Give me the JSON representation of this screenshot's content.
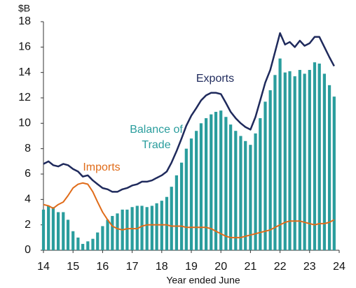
{
  "chart_data": {
    "type": "line_bar",
    "y_unit_label": "$B",
    "xlabel": "Year ended June",
    "x": [
      14,
      14.17,
      14.33,
      14.5,
      14.67,
      14.83,
      15,
      15.17,
      15.33,
      15.5,
      15.67,
      15.83,
      16,
      16.17,
      16.33,
      16.5,
      16.67,
      16.83,
      17,
      17.17,
      17.33,
      17.5,
      17.67,
      17.83,
      18,
      18.17,
      18.33,
      18.5,
      18.67,
      18.83,
      19,
      19.17,
      19.33,
      19.5,
      19.67,
      19.83,
      20,
      20.17,
      20.33,
      20.5,
      20.67,
      20.83,
      21,
      21.17,
      21.33,
      21.5,
      21.67,
      21.83,
      22,
      22.17,
      22.33,
      22.5,
      22.67,
      22.83,
      23,
      23.17,
      23.33,
      23.5,
      23.67,
      23.83
    ],
    "series": [
      {
        "name": "Balance of Trade",
        "kind": "bar",
        "color": "#2a9d9d",
        "values": [
          3.2,
          3.5,
          3.4,
          3.0,
          3.0,
          2.4,
          1.5,
          1.0,
          0.5,
          0.7,
          0.9,
          1.4,
          1.9,
          2.4,
          2.7,
          2.9,
          3.2,
          3.2,
          3.4,
          3.5,
          3.5,
          3.4,
          3.5,
          3.7,
          3.9,
          4.2,
          5.0,
          5.9,
          6.9,
          8.0,
          8.8,
          9.4,
          10.0,
          10.4,
          10.7,
          10.9,
          11.0,
          10.5,
          9.9,
          9.4,
          9.0,
          8.6,
          8.3,
          9.2,
          10.4,
          11.7,
          12.6,
          13.8,
          15.1,
          14.0,
          14.1,
          13.7,
          14.2,
          13.9,
          14.2,
          14.8,
          14.7,
          13.9,
          13.0,
          12.1
        ]
      },
      {
        "name": "Exports",
        "kind": "line",
        "color": "#1f2a5c",
        "values": [
          6.8,
          7.0,
          6.7,
          6.6,
          6.8,
          6.7,
          6.4,
          6.2,
          5.8,
          5.9,
          5.5,
          5.2,
          4.9,
          4.8,
          4.6,
          4.6,
          4.8,
          4.9,
          5.1,
          5.2,
          5.4,
          5.4,
          5.5,
          5.7,
          5.9,
          6.2,
          6.9,
          7.8,
          8.8,
          9.8,
          10.6,
          11.2,
          11.8,
          12.2,
          12.4,
          12.4,
          12.3,
          11.6,
          10.9,
          10.4,
          10.0,
          9.7,
          9.5,
          10.5,
          11.8,
          13.2,
          14.2,
          15.6,
          17.1,
          16.2,
          16.4,
          16.0,
          16.5,
          16.1,
          16.3,
          16.8,
          16.8,
          16.0,
          15.2,
          14.5
        ]
      },
      {
        "name": "Imports",
        "kind": "line",
        "color": "#e06c1a",
        "values": [
          3.6,
          3.5,
          3.3,
          3.6,
          3.8,
          4.3,
          4.9,
          5.2,
          5.3,
          5.2,
          4.6,
          3.8,
          3.0,
          2.4,
          1.9,
          1.7,
          1.6,
          1.7,
          1.7,
          1.7,
          1.9,
          2.0,
          2.0,
          2.0,
          2.0,
          2.0,
          1.9,
          1.9,
          1.9,
          1.8,
          1.8,
          1.8,
          1.8,
          1.8,
          1.7,
          1.5,
          1.3,
          1.1,
          1.0,
          1.0,
          1.0,
          1.1,
          1.2,
          1.3,
          1.4,
          1.5,
          1.6,
          1.8,
          2.0,
          2.2,
          2.3,
          2.3,
          2.3,
          2.2,
          2.1,
          2.0,
          2.1,
          2.1,
          2.2,
          2.4
        ]
      }
    ],
    "xlim": [
      14,
      24
    ],
    "xticks": [
      14,
      15,
      16,
      17,
      18,
      19,
      20,
      21,
      22,
      23,
      24
    ],
    "ylim": [
      0,
      18
    ],
    "yticks": [
      0,
      2,
      4,
      6,
      8,
      10,
      12,
      14,
      16,
      18
    ],
    "grid": false
  }
}
